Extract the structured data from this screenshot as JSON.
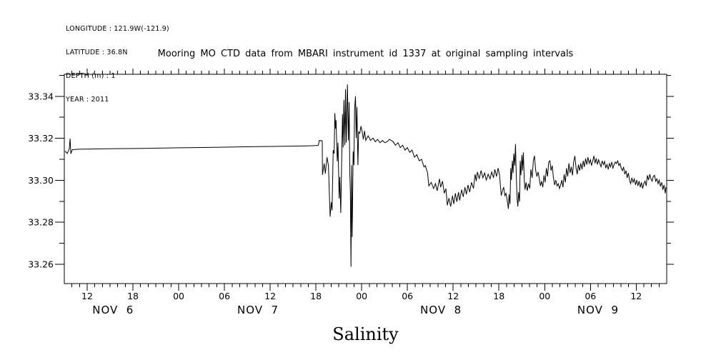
{
  "window": {
    "background": "#ffffff",
    "foreground": "#000000"
  },
  "header": {
    "lines": [
      "LONGITUDE : 121.9W(-121.9)",
      "LATITUDE : 36.8N",
      "DEPTH (m) : 1",
      "YEAR : 2011"
    ]
  },
  "chart_data": {
    "type": "line",
    "title": "Mooring MO CTD data from MBARI instrument id 1337 at original sampling intervals",
    "xlabel": "Salinity",
    "ylabel": "",
    "series_name": "salinity",
    "line_color": "#000000",
    "x_unit": "hours since 2011-11-06 00:00",
    "xlim": [
      9.0,
      88.0
    ],
    "ylim": [
      33.2508,
      33.3505
    ],
    "grid": false,
    "legend": "none",
    "x_major_ticks": [
      {
        "t": 12,
        "label": "12"
      },
      {
        "t": 18,
        "label": "18"
      },
      {
        "t": 24,
        "label": "00"
      },
      {
        "t": 30,
        "label": "06"
      },
      {
        "t": 36,
        "label": "12"
      },
      {
        "t": 42,
        "label": "18"
      },
      {
        "t": 48,
        "label": "00"
      },
      {
        "t": 54,
        "label": "06"
      },
      {
        "t": 60,
        "label": "12"
      },
      {
        "t": 66,
        "label": "18"
      },
      {
        "t": 72,
        "label": "00"
      },
      {
        "t": 78,
        "label": "06"
      },
      {
        "t": 84,
        "label": "12"
      }
    ],
    "x_minor_step_hours": 1,
    "day_labels": [
      {
        "t": 15.4,
        "label": "NOV  6"
      },
      {
        "t": 34.4,
        "label": "NOV  7"
      },
      {
        "t": 58.4,
        "label": "NOV  8"
      },
      {
        "t": 79.0,
        "label": "NOV  9"
      }
    ],
    "y_major_ticks": [
      33.26,
      33.28,
      33.3,
      33.32,
      33.34
    ],
    "y_tick_labels": [
      "33.26",
      "33.28",
      "33.30",
      "33.32",
      "33.34"
    ],
    "y_minor_step": 0.01,
    "points": [
      [
        9.1,
        33.3139
      ],
      [
        9.38,
        33.3128
      ],
      [
        9.66,
        33.315
      ],
      [
        9.76,
        33.3198
      ],
      [
        9.85,
        33.3126
      ],
      [
        10.04,
        33.3146
      ],
      [
        10.97,
        33.3148
      ],
      [
        14.71,
        33.315
      ],
      [
        19.39,
        33.3152
      ],
      [
        24.07,
        33.3155
      ],
      [
        28.74,
        33.3157
      ],
      [
        33.42,
        33.316
      ],
      [
        38.09,
        33.3162
      ],
      [
        40.9,
        33.3164
      ],
      [
        42.3,
        33.3166
      ],
      [
        42.46,
        33.319
      ],
      [
        42.83,
        33.3188
      ],
      [
        42.86,
        33.3026
      ],
      [
        43.08,
        33.308
      ],
      [
        43.23,
        33.3032
      ],
      [
        43.45,
        33.311
      ],
      [
        43.64,
        33.307
      ],
      [
        43.86,
        33.2827
      ],
      [
        44.01,
        33.2896
      ],
      [
        44.11,
        33.2857
      ],
      [
        44.26,
        33.3144
      ],
      [
        44.39,
        33.3127
      ],
      [
        44.48,
        33.332
      ],
      [
        44.57,
        33.3246
      ],
      [
        44.64,
        33.3286
      ],
      [
        44.8,
        33.309
      ],
      [
        44.89,
        33.3179
      ],
      [
        45.04,
        33.2914
      ],
      [
        45.13,
        33.3016
      ],
      [
        45.26,
        33.2845
      ],
      [
        45.48,
        33.3315
      ],
      [
        45.57,
        33.3156
      ],
      [
        45.67,
        33.3383
      ],
      [
        45.79,
        33.3167
      ],
      [
        45.88,
        33.3434
      ],
      [
        45.98,
        33.3179
      ],
      [
        46.13,
        33.3457
      ],
      [
        46.26,
        33.319
      ],
      [
        46.35,
        33.3372
      ],
      [
        46.44,
        33.3038
      ],
      [
        46.51,
        33.2947
      ],
      [
        46.6,
        33.2588
      ],
      [
        46.67,
        33.3072
      ],
      [
        46.76,
        33.273
      ],
      [
        46.88,
        33.3138
      ],
      [
        46.98,
        33.3072
      ],
      [
        47.07,
        33.3338
      ],
      [
        47.19,
        33.34
      ],
      [
        47.28,
        33.3201
      ],
      [
        47.38,
        33.335
      ],
      [
        47.51,
        33.3072
      ],
      [
        47.6,
        33.323
      ],
      [
        47.75,
        33.3224
      ],
      [
        47.91,
        33.3258
      ],
      [
        48.07,
        33.323
      ],
      [
        48.22,
        33.3195
      ],
      [
        48.38,
        33.3235
      ],
      [
        48.54,
        33.319
      ],
      [
        48.85,
        33.3212
      ],
      [
        49.16,
        33.319
      ],
      [
        49.47,
        33.3201
      ],
      [
        49.78,
        33.3184
      ],
      [
        50.09,
        33.3195
      ],
      [
        50.41,
        33.3179
      ],
      [
        50.72,
        33.319
      ],
      [
        51.03,
        33.3179
      ],
      [
        51.34,
        33.3184
      ],
      [
        51.65,
        33.3195
      ],
      [
        52.12,
        33.3184
      ],
      [
        52.43,
        33.3167
      ],
      [
        52.75,
        33.3179
      ],
      [
        53.06,
        33.3156
      ],
      [
        53.37,
        33.3167
      ],
      [
        53.68,
        33.3144
      ],
      [
        53.99,
        33.3156
      ],
      [
        54.3,
        33.3133
      ],
      [
        54.62,
        33.3144
      ],
      [
        54.92,
        33.311
      ],
      [
        55.23,
        33.3122
      ],
      [
        55.55,
        33.3093
      ],
      [
        55.86,
        33.31
      ],
      [
        56.17,
        33.3064
      ],
      [
        56.33,
        33.307
      ],
      [
        56.64,
        33.3035
      ],
      [
        56.8,
        33.2973
      ],
      [
        57.11,
        33.299
      ],
      [
        57.43,
        33.2961
      ],
      [
        57.67,
        33.2984
      ],
      [
        57.9,
        33.295
      ],
      [
        58.2,
        33.3007
      ],
      [
        58.36,
        33.2967
      ],
      [
        58.6,
        33.2996
      ],
      [
        58.83,
        33.2938
      ],
      [
        59.04,
        33.2961
      ],
      [
        59.23,
        33.2881
      ],
      [
        59.45,
        33.2915
      ],
      [
        59.67,
        33.2875
      ],
      [
        59.91,
        33.2927
      ],
      [
        60.07,
        33.2887
      ],
      [
        60.29,
        33.2938
      ],
      [
        60.48,
        33.2898
      ],
      [
        60.7,
        33.2944
      ],
      [
        60.85,
        33.2904
      ],
      [
        61.1,
        33.2955
      ],
      [
        61.32,
        33.2921
      ],
      [
        61.54,
        33.2967
      ],
      [
        61.73,
        33.2933
      ],
      [
        61.94,
        33.2978
      ],
      [
        62.16,
        33.2944
      ],
      [
        62.41,
        33.299
      ],
      [
        62.66,
        33.2961
      ],
      [
        62.88,
        33.3029
      ],
      [
        63.03,
        33.2996
      ],
      [
        63.18,
        33.304
      ],
      [
        63.41,
        33.3007
      ],
      [
        63.65,
        33.3046
      ],
      [
        63.9,
        33.3012
      ],
      [
        64.12,
        33.3035
      ],
      [
        64.34,
        33.3001
      ],
      [
        64.59,
        33.3029
      ],
      [
        64.84,
        33.3007
      ],
      [
        65.05,
        33.304
      ],
      [
        65.28,
        33.3012
      ],
      [
        65.46,
        33.3052
      ],
      [
        65.68,
        33.3018
      ],
      [
        65.89,
        33.3058
      ],
      [
        66.08,
        33.3024
      ],
      [
        66.31,
        33.2927
      ],
      [
        66.46,
        33.295
      ],
      [
        66.62,
        33.2967
      ],
      [
        66.77,
        33.2927
      ],
      [
        66.92,
        33.2938
      ],
      [
        67.08,
        33.2904
      ],
      [
        67.24,
        33.2864
      ],
      [
        67.33,
        33.2933
      ],
      [
        67.45,
        33.2887
      ],
      [
        67.55,
        33.3058
      ],
      [
        67.64,
        33.3001
      ],
      [
        67.76,
        33.3093
      ],
      [
        67.86,
        33.3035
      ],
      [
        67.95,
        33.3127
      ],
      [
        68.08,
        33.307
      ],
      [
        68.17,
        33.3173
      ],
      [
        68.27,
        33.3024
      ],
      [
        68.39,
        33.291
      ],
      [
        68.48,
        33.2875
      ],
      [
        68.58,
        33.2944
      ],
      [
        68.7,
        33.2898
      ],
      [
        68.79,
        33.3093
      ],
      [
        68.88,
        33.3024
      ],
      [
        69.01,
        33.3121
      ],
      [
        69.11,
        33.3046
      ],
      [
        69.2,
        33.3133
      ],
      [
        69.32,
        33.3001
      ],
      [
        69.42,
        33.2955
      ],
      [
        69.57,
        33.299
      ],
      [
        69.72,
        33.295
      ],
      [
        69.88,
        33.2984
      ],
      [
        70.04,
        33.2961
      ],
      [
        70.19,
        33.3052
      ],
      [
        70.35,
        33.3012
      ],
      [
        70.51,
        33.3093
      ],
      [
        70.66,
        33.3116
      ],
      [
        70.82,
        33.3046
      ],
      [
        70.98,
        33.3018
      ],
      [
        71.13,
        33.304
      ],
      [
        71.29,
        33.3007
      ],
      [
        71.44,
        33.2973
      ],
      [
        71.59,
        33.2996
      ],
      [
        71.75,
        33.2967
      ],
      [
        71.91,
        33.3024
      ],
      [
        72.06,
        33.299
      ],
      [
        72.22,
        33.3058
      ],
      [
        72.38,
        33.3018
      ],
      [
        72.53,
        33.3087
      ],
      [
        72.69,
        33.3093
      ],
      [
        72.84,
        33.3046
      ],
      [
        72.99,
        33.307
      ],
      [
        73.15,
        33.3012
      ],
      [
        73.31,
        33.2978
      ],
      [
        73.46,
        33.3001
      ],
      [
        73.62,
        33.2973
      ],
      [
        73.78,
        33.2984
      ],
      [
        73.93,
        33.2961
      ],
      [
        74.09,
        33.2978
      ],
      [
        74.24,
        33.3001
      ],
      [
        74.39,
        33.2967
      ],
      [
        74.55,
        33.3029
      ],
      [
        74.71,
        33.299
      ],
      [
        74.86,
        33.3058
      ],
      [
        75.02,
        33.3018
      ],
      [
        75.18,
        33.3081
      ],
      [
        75.33,
        33.3035
      ],
      [
        75.49,
        33.3064
      ],
      [
        75.65,
        33.3024
      ],
      [
        75.8,
        33.3087
      ],
      [
        75.96,
        33.3116
      ],
      [
        76.12,
        33.3058
      ],
      [
        76.27,
        33.3029
      ],
      [
        76.43,
        33.3075
      ],
      [
        76.59,
        33.3046
      ],
      [
        76.74,
        33.3081
      ],
      [
        76.9,
        33.3052
      ],
      [
        77.05,
        33.3093
      ],
      [
        77.2,
        33.3064
      ],
      [
        77.36,
        33.3104
      ],
      [
        77.52,
        33.3075
      ],
      [
        77.67,
        33.311
      ],
      [
        77.83,
        33.3081
      ],
      [
        77.99,
        33.3098
      ],
      [
        78.14,
        33.307
      ],
      [
        78.3,
        33.3093
      ],
      [
        78.45,
        33.3116
      ],
      [
        78.6,
        33.3081
      ],
      [
        78.76,
        33.3104
      ],
      [
        78.92,
        33.3075
      ],
      [
        79.07,
        33.3098
      ],
      [
        79.23,
        33.308
      ],
      [
        79.39,
        33.3064
      ],
      [
        79.54,
        33.3093
      ],
      [
        79.7,
        33.3075
      ],
      [
        79.86,
        33.309
      ],
      [
        80.01,
        33.3058
      ],
      [
        80.17,
        33.3075
      ],
      [
        80.33,
        33.3052
      ],
      [
        80.48,
        33.308
      ],
      [
        80.63,
        33.3064
      ],
      [
        80.79,
        33.3087
      ],
      [
        80.94,
        33.3058
      ],
      [
        81.1,
        33.3075
      ],
      [
        81.26,
        33.3087
      ],
      [
        81.41,
        33.308
      ],
      [
        81.57,
        33.3093
      ],
      [
        81.73,
        33.307
      ],
      [
        81.88,
        33.308
      ],
      [
        82.04,
        33.3058
      ],
      [
        82.2,
        33.3046
      ],
      [
        82.35,
        33.3064
      ],
      [
        82.51,
        33.3029
      ],
      [
        82.67,
        33.3046
      ],
      [
        82.82,
        33.3012
      ],
      [
        82.98,
        33.3035
      ],
      [
        83.13,
        33.3001
      ],
      [
        83.28,
        33.2984
      ],
      [
        83.44,
        33.3012
      ],
      [
        83.6,
        33.299
      ],
      [
        83.75,
        33.3007
      ],
      [
        83.91,
        33.2978
      ],
      [
        84.07,
        33.3001
      ],
      [
        84.22,
        33.2973
      ],
      [
        84.38,
        33.2996
      ],
      [
        84.54,
        33.2967
      ],
      [
        84.69,
        33.299
      ],
      [
        84.85,
        33.2961
      ],
      [
        85.0,
        33.2984
      ],
      [
        85.16,
        33.2996
      ],
      [
        85.31,
        33.2973
      ],
      [
        85.47,
        33.3024
      ],
      [
        85.62,
        33.3001
      ],
      [
        85.78,
        33.3029
      ],
      [
        85.94,
        33.3007
      ],
      [
        86.09,
        33.2996
      ],
      [
        86.25,
        33.3018
      ],
      [
        86.41,
        33.3024
      ],
      [
        86.56,
        33.2996
      ],
      [
        86.72,
        33.3007
      ],
      [
        86.87,
        33.2984
      ],
      [
        87.02,
        33.3001
      ],
      [
        87.18,
        33.2973
      ],
      [
        87.34,
        33.299
      ],
      [
        87.49,
        33.2955
      ],
      [
        87.65,
        33.2978
      ],
      [
        87.81,
        33.2938
      ],
      [
        87.9,
        33.2967
      ]
    ]
  }
}
